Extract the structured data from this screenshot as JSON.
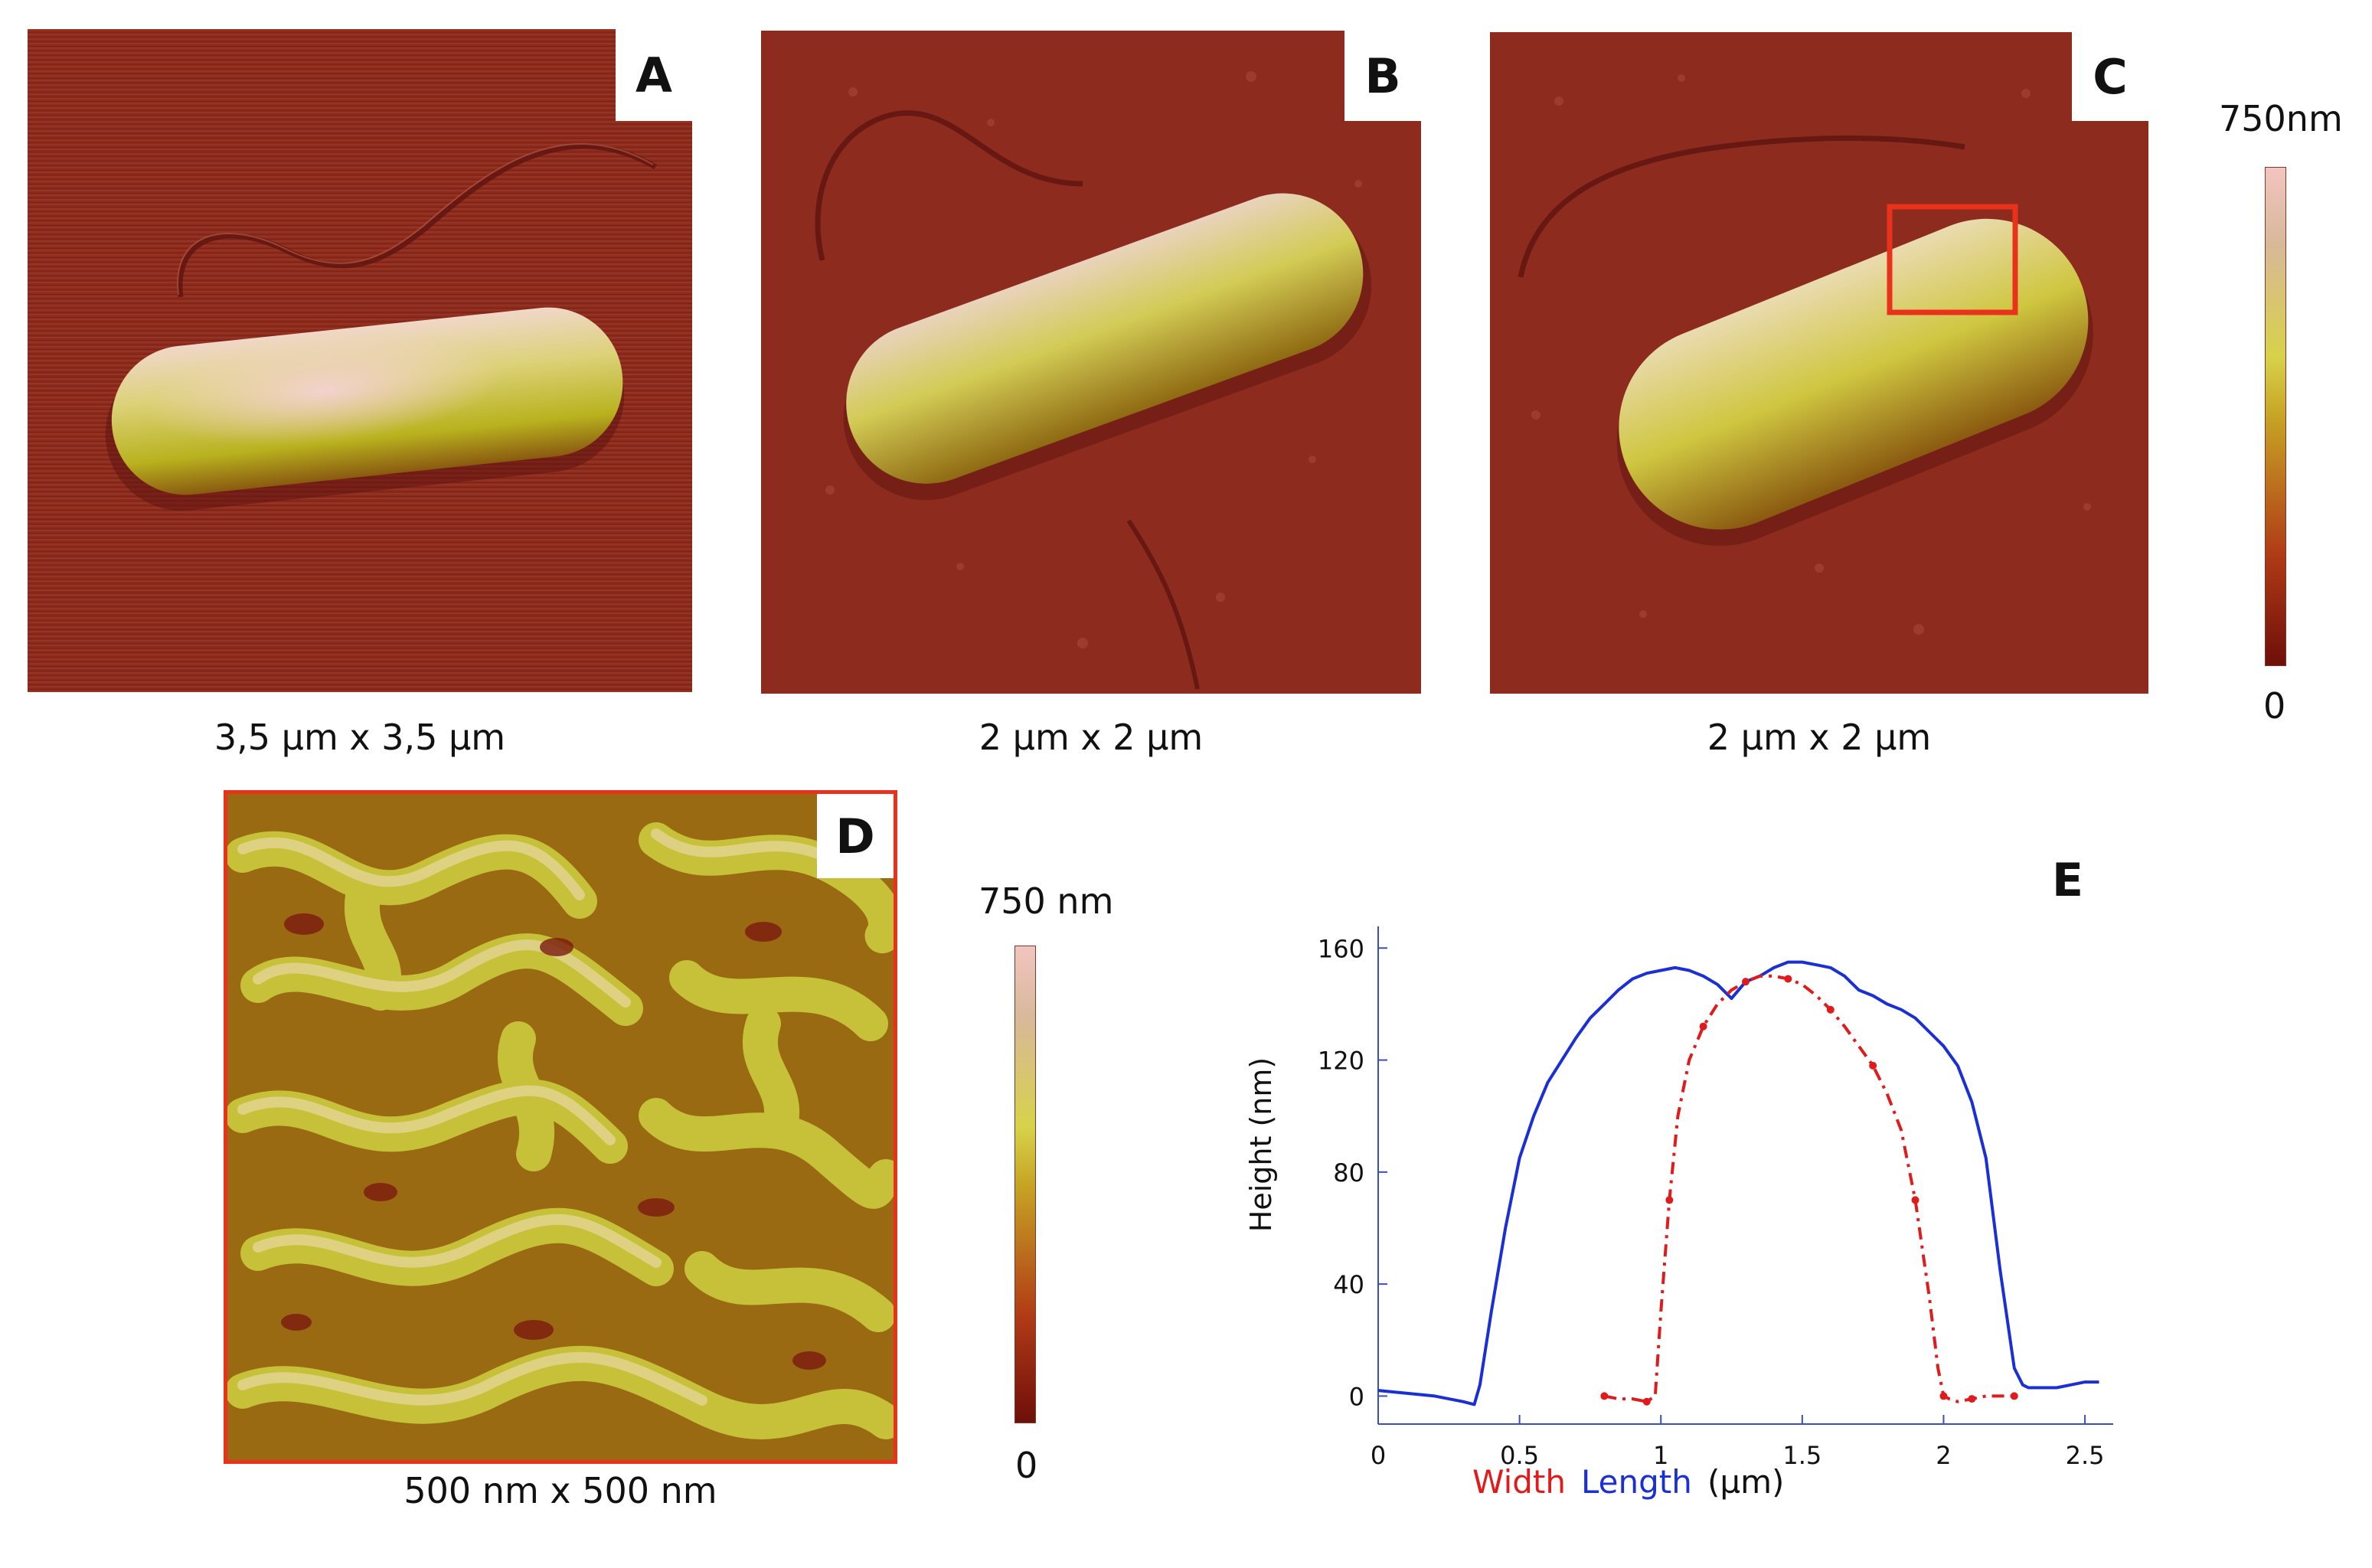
{
  "panels": {
    "a": {
      "letter": "A",
      "caption": "3,5 µm x 3,5 µm"
    },
    "b": {
      "letter": "B",
      "caption": "2 µm x 2 µm"
    },
    "c": {
      "letter": "C",
      "caption": "2 µm x 2 µm"
    },
    "d": {
      "letter": "D",
      "caption": "500 nm x 500 nm"
    },
    "e": {
      "letter": "E"
    }
  },
  "colorbars": {
    "top": {
      "max_label": "750nm",
      "min_label": "0"
    },
    "bottom": {
      "max_label": "750 nm",
      "min_label": "0"
    }
  },
  "colors": {
    "substrate": "#8b2a1d",
    "cell_body": "#c9c03c",
    "highlight_box": "#e8321c",
    "length_line": "#1a2fd6",
    "width_line": "#e01b1b"
  },
  "chart_data": {
    "type": "line",
    "title": "",
    "xlabel": "(µm)",
    "ylabel": "Height (nm)",
    "xlim": [
      0,
      2.6
    ],
    "ylim": [
      -10,
      165
    ],
    "xticks": [
      0,
      0.5,
      1,
      1.5,
      2,
      2.5
    ],
    "xtick_labels": [
      "0",
      "0.5",
      "1",
      "1.5",
      "2",
      "2.5"
    ],
    "yticks": [
      0,
      40,
      80,
      120,
      160
    ],
    "ytick_labels": [
      "0",
      "40",
      "80",
      "120",
      "160"
    ],
    "legend": [
      {
        "name": "Width",
        "color": "#e01b1b"
      },
      {
        "name": "Length",
        "color": "#1a2fd6"
      }
    ],
    "series": [
      {
        "name": "Length",
        "color": "#1a2fd6",
        "style": "solid",
        "x": [
          0,
          0.1,
          0.2,
          0.3,
          0.34,
          0.36,
          0.4,
          0.45,
          0.5,
          0.55,
          0.6,
          0.65,
          0.7,
          0.75,
          0.8,
          0.85,
          0.9,
          0.95,
          1.0,
          1.05,
          1.1,
          1.15,
          1.2,
          1.25,
          1.3,
          1.35,
          1.4,
          1.45,
          1.5,
          1.55,
          1.6,
          1.65,
          1.7,
          1.75,
          1.8,
          1.85,
          1.9,
          1.95,
          2.0,
          2.05,
          2.1,
          2.15,
          2.2,
          2.25,
          2.28,
          2.3,
          2.35,
          2.4,
          2.45,
          2.5,
          2.55
        ],
        "y": [
          2,
          1,
          0,
          -2,
          -3,
          4,
          30,
          60,
          85,
          100,
          112,
          120,
          128,
          135,
          140,
          145,
          149,
          151,
          152,
          153,
          152,
          150,
          147,
          142,
          148,
          150,
          153,
          155,
          155,
          154,
          153,
          150,
          145,
          143,
          140,
          138,
          135,
          130,
          125,
          118,
          105,
          85,
          45,
          10,
          4,
          3,
          3,
          3,
          4,
          5,
          5
        ]
      },
      {
        "name": "Width",
        "color": "#e01b1b",
        "style": "dash-dot",
        "x": [
          0.8,
          0.85,
          0.9,
          0.95,
          0.98,
          1.0,
          1.03,
          1.06,
          1.1,
          1.15,
          1.2,
          1.25,
          1.3,
          1.35,
          1.4,
          1.45,
          1.5,
          1.55,
          1.6,
          1.65,
          1.7,
          1.75,
          1.8,
          1.85,
          1.9,
          1.95,
          1.98,
          2.0,
          2.02,
          2.05,
          2.1,
          2.15,
          2.2,
          2.25
        ],
        "y": [
          0,
          -1,
          -1,
          -2,
          0,
          30,
          70,
          100,
          120,
          132,
          140,
          145,
          148,
          150,
          150,
          149,
          147,
          143,
          138,
          132,
          125,
          118,
          108,
          95,
          70,
          35,
          10,
          0,
          -1,
          -2,
          -1,
          0,
          0,
          0
        ]
      }
    ]
  }
}
